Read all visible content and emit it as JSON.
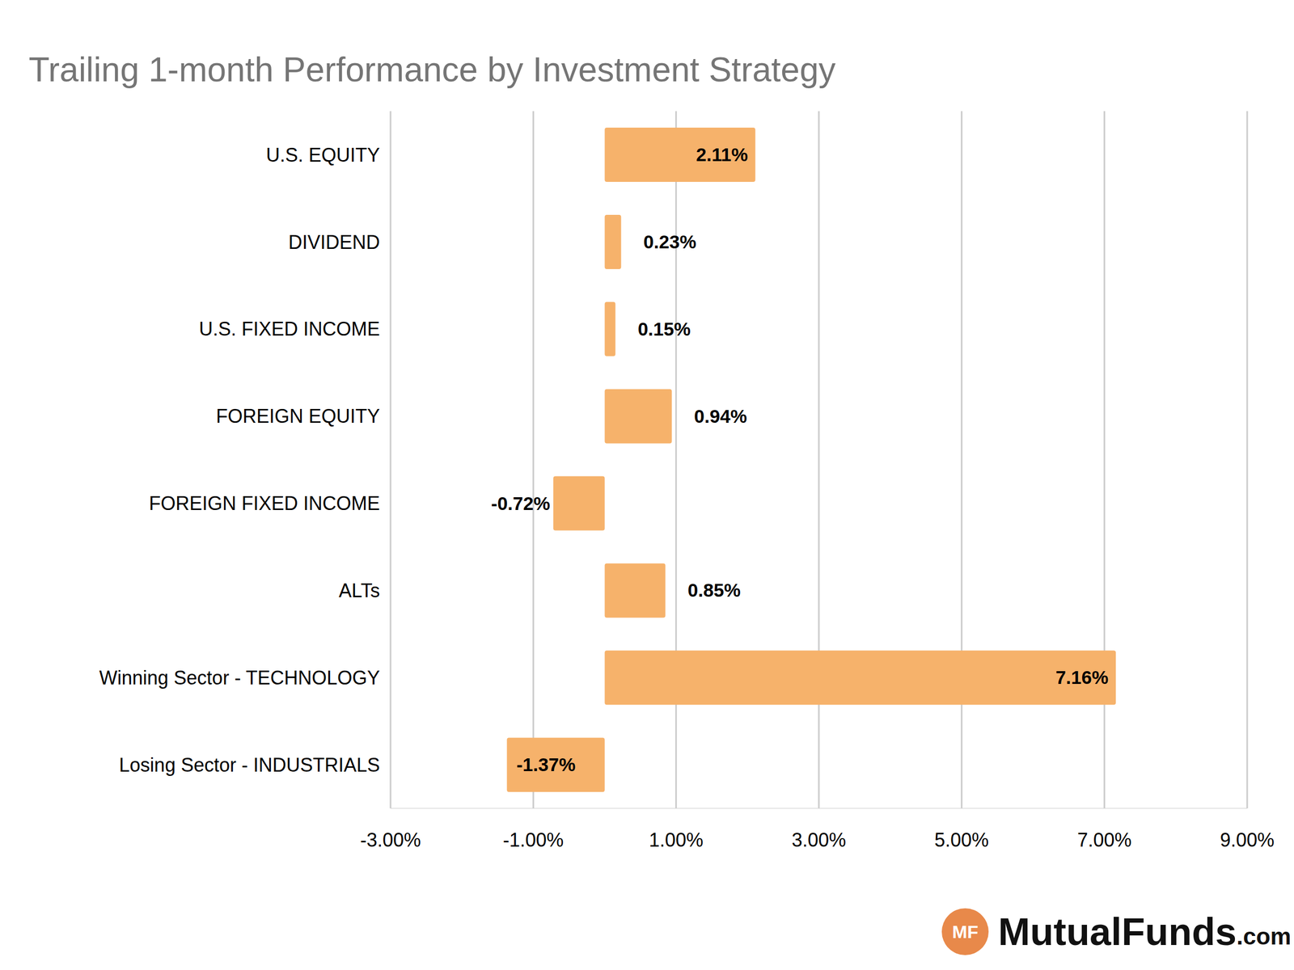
{
  "chart_data": {
    "type": "bar",
    "title": "Trailing 1-month Performance by Investment Strategy",
    "orientation": "horizontal",
    "categories": [
      "U.S. EQUITY",
      "DIVIDEND",
      "U.S. FIXED INCOME",
      "FOREIGN EQUITY",
      "FOREIGN FIXED INCOME",
      "ALTs",
      "Winning Sector - TECHNOLOGY",
      "Losing Sector - INDUSTRIALS"
    ],
    "values": [
      2.11,
      0.23,
      0.15,
      0.94,
      -0.72,
      0.85,
      7.16,
      -1.37
    ],
    "value_labels": [
      "2.11%",
      "0.23%",
      "0.15%",
      "0.94%",
      "-0.72%",
      "0.85%",
      "7.16%",
      "-1.37%"
    ],
    "data_labels": true,
    "color": "#f6b26b",
    "xlim": [
      -3,
      9
    ],
    "xticks": [
      {
        "value": -3,
        "label": "-3.00%"
      },
      {
        "value": -1,
        "label": "-1.00%"
      },
      {
        "value": 1,
        "label": "1.00%"
      },
      {
        "value": 3,
        "label": "3.00%"
      },
      {
        "value": 5,
        "label": "5.00%"
      },
      {
        "value": 7,
        "label": "7.00%"
      },
      {
        "value": 9,
        "label": "9.00%"
      }
    ],
    "grid": true,
    "logo_badge": "MF",
    "logo_text": "MutualFunds",
    "logo_suffix": ".com"
  }
}
